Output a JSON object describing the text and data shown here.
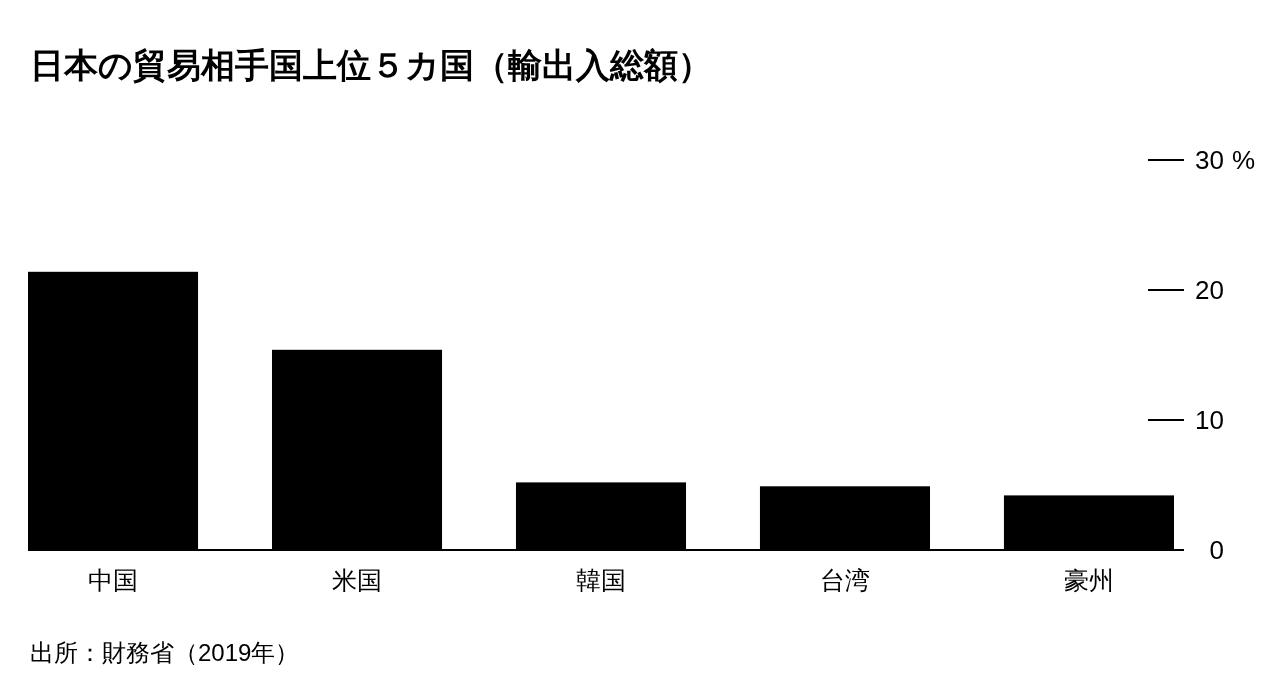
{
  "chart_data": {
    "type": "bar",
    "title": "日本の貿易相手国上位５カ国（輸出入総額）",
    "categories": [
      "中国",
      "米国",
      "韓国",
      "台湾",
      "豪州"
    ],
    "values": [
      21.4,
      15.4,
      5.2,
      4.9,
      4.2
    ],
    "color": "#000000",
    "ylabel": "%",
    "ylim": [
      0,
      30
    ],
    "yticks": [
      0,
      10,
      20,
      30
    ],
    "annotations": [
      "出所：財務省（2019年）"
    ]
  }
}
